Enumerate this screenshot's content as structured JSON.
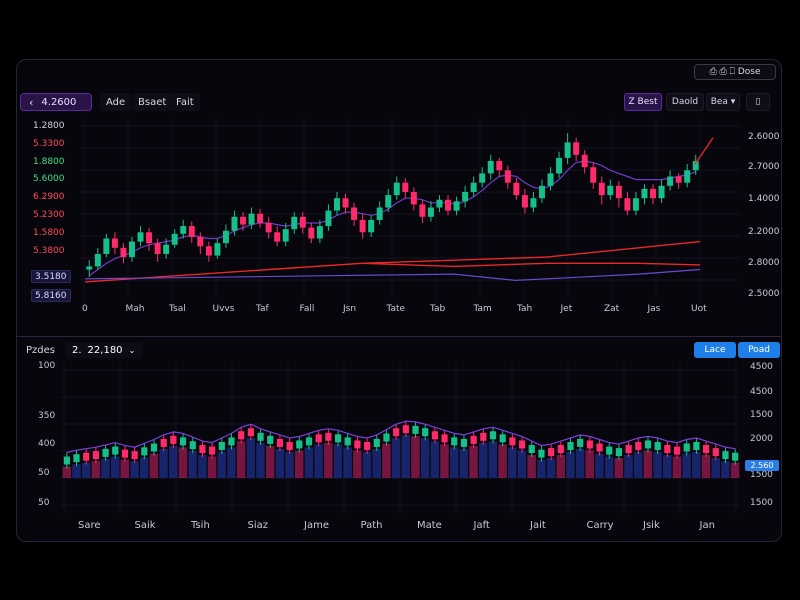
{
  "topbar": {
    "buttons_label": "⎙  ⎙  ⎕  ☐☐☐",
    "label": "⎙ ⎙ ⎕ Dose"
  },
  "toolbar": {
    "price": "4.2600",
    "back_icon": "chevron-left-icon",
    "tabs": [
      "Ade",
      "Bsaet",
      "Fait"
    ],
    "right_tabs": [
      "Z Best",
      "Daold",
      "Bea ▾",
      "▯"
    ]
  },
  "main_chart": {
    "left_labels": [
      {
        "text": "1.2800",
        "color": "#d4d4e4"
      },
      {
        "text": "5.3300",
        "color": "#ff4a5a"
      },
      {
        "text": "1.8800",
        "color": "#3fe08a"
      },
      {
        "text": "5.6000",
        "color": "#3fe08a"
      },
      {
        "text": "6.2900",
        "color": "#ff4a5a"
      },
      {
        "text": "5.2300",
        "color": "#ff4a5a"
      },
      {
        "text": "1.5800",
        "color": "#ff4a5a"
      },
      {
        "text": "5.3800",
        "color": "#ff4a5a"
      }
    ],
    "chips": [
      "3.5180",
      "5.8160"
    ],
    "right_labels": [
      "2.6000",
      "2.7000",
      "1.4000",
      "2.2000",
      "2.8000",
      "2.5000"
    ],
    "x_labels": [
      "0",
      "Mah",
      "Tsal",
      "Uvvs",
      "Taf",
      "Fall",
      "Jsn",
      "Tate",
      "Tab",
      "Tam",
      "Tah",
      "Jet",
      "Zat",
      "Jas",
      "Uot"
    ],
    "colors": {
      "up": "#17c08a",
      "down": "#ff2a6a",
      "ma_red": "#e82828",
      "ma_purple": "#7a40e0"
    }
  },
  "chart_data": {
    "type": "candlestick",
    "candles": [
      [
        0.1,
        0.12,
        0.16,
        0.05
      ],
      [
        0.12,
        0.2,
        0.24,
        0.1
      ],
      [
        0.2,
        0.3,
        0.33,
        0.18
      ],
      [
        0.3,
        0.24,
        0.34,
        0.2
      ],
      [
        0.24,
        0.18,
        0.27,
        0.14
      ],
      [
        0.18,
        0.28,
        0.31,
        0.15
      ],
      [
        0.28,
        0.34,
        0.38,
        0.25
      ],
      [
        0.34,
        0.27,
        0.37,
        0.22
      ],
      [
        0.27,
        0.2,
        0.3,
        0.15
      ],
      [
        0.2,
        0.26,
        0.3,
        0.17
      ],
      [
        0.26,
        0.33,
        0.36,
        0.24
      ],
      [
        0.33,
        0.38,
        0.42,
        0.3
      ],
      [
        0.38,
        0.31,
        0.41,
        0.27
      ],
      [
        0.31,
        0.25,
        0.34,
        0.2
      ],
      [
        0.25,
        0.19,
        0.28,
        0.15
      ],
      [
        0.19,
        0.27,
        0.3,
        0.17
      ],
      [
        0.27,
        0.35,
        0.39,
        0.24
      ],
      [
        0.35,
        0.44,
        0.48,
        0.32
      ],
      [
        0.44,
        0.39,
        0.47,
        0.35
      ],
      [
        0.39,
        0.46,
        0.5,
        0.36
      ],
      [
        0.46,
        0.4,
        0.49,
        0.37
      ],
      [
        0.4,
        0.34,
        0.44,
        0.3
      ],
      [
        0.34,
        0.28,
        0.38,
        0.25
      ],
      [
        0.28,
        0.36,
        0.4,
        0.25
      ],
      [
        0.36,
        0.44,
        0.47,
        0.33
      ],
      [
        0.44,
        0.37,
        0.47,
        0.33
      ],
      [
        0.37,
        0.3,
        0.4,
        0.27
      ],
      [
        0.3,
        0.38,
        0.42,
        0.27
      ],
      [
        0.38,
        0.48,
        0.52,
        0.35
      ],
      [
        0.48,
        0.56,
        0.6,
        0.45
      ],
      [
        0.56,
        0.5,
        0.59,
        0.46
      ],
      [
        0.5,
        0.42,
        0.53,
        0.38
      ],
      [
        0.42,
        0.34,
        0.46,
        0.3
      ],
      [
        0.34,
        0.42,
        0.45,
        0.31
      ],
      [
        0.42,
        0.5,
        0.54,
        0.39
      ],
      [
        0.5,
        0.58,
        0.62,
        0.47
      ],
      [
        0.58,
        0.66,
        0.7,
        0.55
      ],
      [
        0.66,
        0.6,
        0.69,
        0.56
      ],
      [
        0.6,
        0.52,
        0.63,
        0.48
      ],
      [
        0.52,
        0.44,
        0.55,
        0.4
      ],
      [
        0.44,
        0.5,
        0.54,
        0.41
      ],
      [
        0.5,
        0.55,
        0.58,
        0.47
      ],
      [
        0.55,
        0.48,
        0.58,
        0.45
      ],
      [
        0.48,
        0.54,
        0.57,
        0.45
      ],
      [
        0.54,
        0.6,
        0.64,
        0.5
      ],
      [
        0.6,
        0.66,
        0.7,
        0.57
      ],
      [
        0.66,
        0.72,
        0.76,
        0.63
      ],
      [
        0.72,
        0.8,
        0.84,
        0.68
      ],
      [
        0.8,
        0.74,
        0.82,
        0.7
      ],
      [
        0.74,
        0.66,
        0.77,
        0.62
      ],
      [
        0.66,
        0.58,
        0.69,
        0.55
      ],
      [
        0.58,
        0.5,
        0.62,
        0.46
      ],
      [
        0.5,
        0.56,
        0.6,
        0.47
      ],
      [
        0.56,
        0.64,
        0.68,
        0.53
      ],
      [
        0.64,
        0.72,
        0.76,
        0.61
      ],
      [
        0.72,
        0.82,
        0.86,
        0.69
      ],
      [
        0.82,
        0.92,
        0.98,
        0.78
      ],
      [
        0.92,
        0.84,
        0.95,
        0.8
      ],
      [
        0.84,
        0.76,
        0.87,
        0.72
      ],
      [
        0.76,
        0.66,
        0.79,
        0.62
      ],
      [
        0.66,
        0.58,
        0.7,
        0.52
      ],
      [
        0.58,
        0.64,
        0.68,
        0.55
      ],
      [
        0.64,
        0.56,
        0.67,
        0.5
      ],
      [
        0.56,
        0.48,
        0.6,
        0.45
      ],
      [
        0.48,
        0.56,
        0.6,
        0.45
      ],
      [
        0.56,
        0.62,
        0.65,
        0.52
      ],
      [
        0.62,
        0.56,
        0.65,
        0.52
      ],
      [
        0.56,
        0.64,
        0.68,
        0.53
      ],
      [
        0.64,
        0.7,
        0.74,
        0.61
      ],
      [
        0.7,
        0.66,
        0.72,
        0.62
      ],
      [
        0.66,
        0.74,
        0.78,
        0.63
      ],
      [
        0.74,
        0.8,
        0.84,
        0.71
      ]
    ],
    "ma_purple": [
      0.06,
      0.1,
      0.14,
      0.17,
      0.19,
      0.21,
      0.24,
      0.26,
      0.27,
      0.28,
      0.29,
      0.31,
      0.32,
      0.31,
      0.3,
      0.3,
      0.32,
      0.35,
      0.37,
      0.39,
      0.4,
      0.4,
      0.39,
      0.38,
      0.39,
      0.4,
      0.4,
      0.4,
      0.42,
      0.45,
      0.47,
      0.47,
      0.46,
      0.45,
      0.46,
      0.49,
      0.53,
      0.56,
      0.56,
      0.55,
      0.53,
      0.53,
      0.53,
      0.52,
      0.54,
      0.57,
      0.61,
      0.66,
      0.7,
      0.71,
      0.7,
      0.66,
      0.63,
      0.62,
      0.64,
      0.68,
      0.74,
      0.79,
      0.8,
      0.79,
      0.77,
      0.74,
      0.72,
      0.7,
      0.68,
      0.68,
      0.68,
      0.68,
      0.69,
      0.7,
      0.71,
      0.73
    ],
    "ma_red_x": [
      0,
      0.15,
      0.3,
      0.45,
      0.6,
      0.75,
      0.85,
      1.0
    ],
    "ma_red_y": [
      0.02,
      0.06,
      0.1,
      0.14,
      0.16,
      0.18,
      0.22,
      0.28
    ],
    "ma_red2_x": [
      0.45,
      0.6,
      0.75,
      0.9,
      1.0
    ],
    "ma_red2_y": [
      0.14,
      0.12,
      0.14,
      0.14,
      0.13
    ],
    "ma_purple2_x": [
      0,
      0.2,
      0.4,
      0.6,
      0.7,
      0.8,
      0.9,
      1.0
    ],
    "ma_purple2_y": [
      0.04,
      0.05,
      0.06,
      0.07,
      0.03,
      0.05,
      0.07,
      0.1
    ]
  },
  "lower_panel": {
    "label_left": "Pzdes",
    "value": "2.",
    "value2": "22,180",
    "dropdown_icon": "chevron-down-icon",
    "btn1": "Lace",
    "btn2": "Poad",
    "left_labels": [
      "100",
      "350",
      "400",
      "50",
      "50"
    ],
    "right_labels": [
      "4500",
      "4500",
      "1500",
      "2000",
      "1500",
      "1500"
    ],
    "badge": "2.560",
    "x_labels": [
      "Sare",
      "Saik",
      "Tsih",
      "Siaz",
      "Jame",
      "Path",
      "Mate",
      "Jaft",
      "Jait",
      "Carry",
      "Jsik",
      "Jan"
    ],
    "volume": [
      0.15,
      0.18,
      0.2,
      0.22,
      0.25,
      0.28,
      0.24,
      0.22,
      0.27,
      0.32,
      0.38,
      0.42,
      0.4,
      0.35,
      0.3,
      0.28,
      0.34,
      0.4,
      0.48,
      0.52,
      0.46,
      0.42,
      0.38,
      0.34,
      0.36,
      0.4,
      0.44,
      0.46,
      0.44,
      0.4,
      0.36,
      0.34,
      0.38,
      0.45,
      0.52,
      0.56,
      0.55,
      0.52,
      0.48,
      0.44,
      0.4,
      0.38,
      0.42,
      0.46,
      0.48,
      0.44,
      0.4,
      0.36,
      0.3,
      0.24,
      0.26,
      0.3,
      0.34,
      0.38,
      0.36,
      0.32,
      0.28,
      0.26,
      0.3,
      0.34,
      0.36,
      0.34,
      0.3,
      0.28,
      0.32,
      0.34,
      0.3,
      0.26,
      0.22,
      0.2
    ]
  }
}
